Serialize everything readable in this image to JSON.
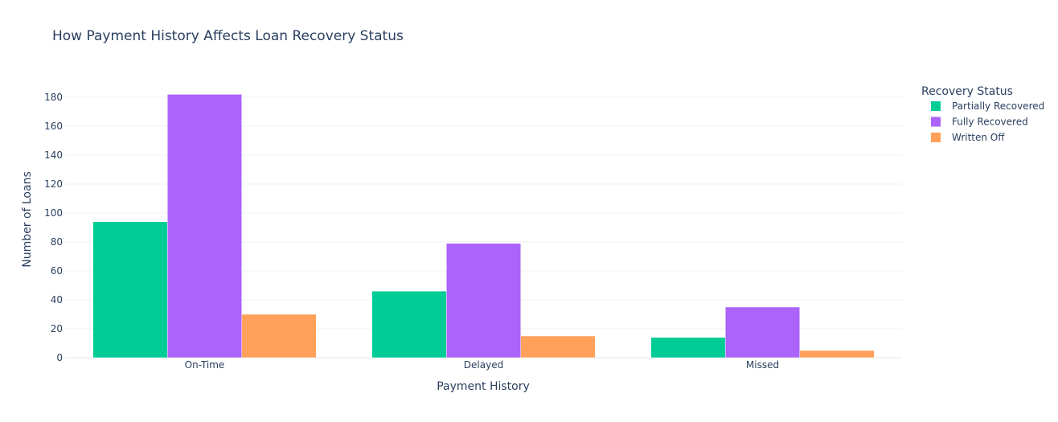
{
  "chart_data": {
    "type": "bar",
    "title": "How Payment History Affects Loan Recovery Status",
    "xlabel": "Payment History",
    "ylabel": "Number of Loans",
    "categories": [
      "On-Time",
      "Delayed",
      "Missed"
    ],
    "ylim": [
      0,
      195
    ],
    "yticks": [
      0,
      20,
      40,
      60,
      80,
      100,
      120,
      140,
      160,
      180
    ],
    "grid": true,
    "legend_title": "Recovery Status",
    "legend_position": "top-right",
    "series": [
      {
        "name": "Partially Recovered",
        "color": "#00cc96",
        "values": [
          94,
          46,
          14
        ]
      },
      {
        "name": "Fully Recovered",
        "color": "#ab63fa",
        "values": [
          182,
          79,
          35
        ]
      },
      {
        "name": "Written Off",
        "color": "#ffa15a",
        "values": [
          30,
          15,
          5
        ]
      }
    ]
  }
}
